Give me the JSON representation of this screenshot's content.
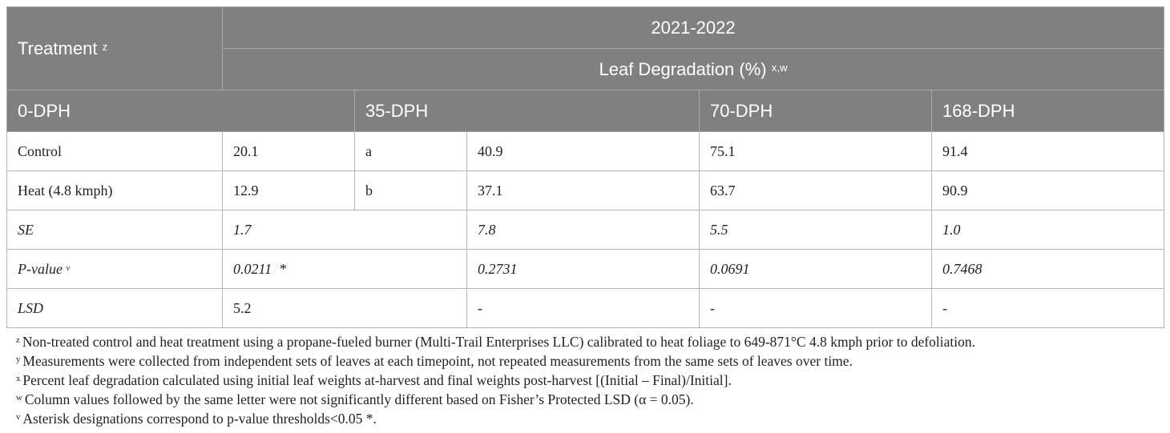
{
  "header": {
    "treatment": "Treatment",
    "treatment_sup": "z",
    "year": "2021-2022",
    "measure": "Leaf Degradation (%)",
    "measure_sup": "x,w",
    "cols": [
      "0-DPH",
      "35-DPH",
      "70-DPH",
      "168-DPH"
    ]
  },
  "rows": [
    {
      "label": "Control",
      "v0": "20.1",
      "letter": "a",
      "v35": "40.9",
      "v70": "75.1",
      "v168": "91.4"
    },
    {
      "label": "Heat (4.8 kmph)",
      "v0": "12.9",
      "letter": "b",
      "v35": "37.1",
      "v70": "63.7",
      "v168": "90.9"
    }
  ],
  "stats": {
    "se": {
      "label": "SE",
      "v0": "1.7",
      "v35": "7.8",
      "v70": "5.5",
      "v168": "1.0"
    },
    "p": {
      "label": "P-value",
      "sup": "v",
      "v0": "0.0211  *",
      "v35": "0.2731",
      "v70": "0.0691",
      "v168": "0.7468"
    },
    "lsd": {
      "label": "LSD",
      "v0": "5.2",
      "v35": "-",
      "v70": "-",
      "v168": "-"
    }
  },
  "notes": [
    {
      "sup": "z",
      "text": "Non-treated control and heat treatment using a propane-fueled burner (Multi-Trail Enterprises LLC) calibrated to heat foliage to 649-871°C 4.8 kmph prior to defoliation."
    },
    {
      "sup": "y",
      "text": "Measurements were collected from independent sets of leaves at each timepoint, not repeated measurements from the same sets of leaves over time."
    },
    {
      "sup": "x",
      "text": "Percent leaf degradation calculated using initial leaf weights at-harvest and final weights post-harvest [(Initial – Final)/Initial]."
    },
    {
      "sup": "w",
      "text": "Column values followed by the same letter were not significantly different based on Fisher’s Protected LSD (α = 0.05)."
    },
    {
      "sup": "v",
      "text": "Asterisk designations correspond to p-value thresholds<0.05 *."
    }
  ]
}
